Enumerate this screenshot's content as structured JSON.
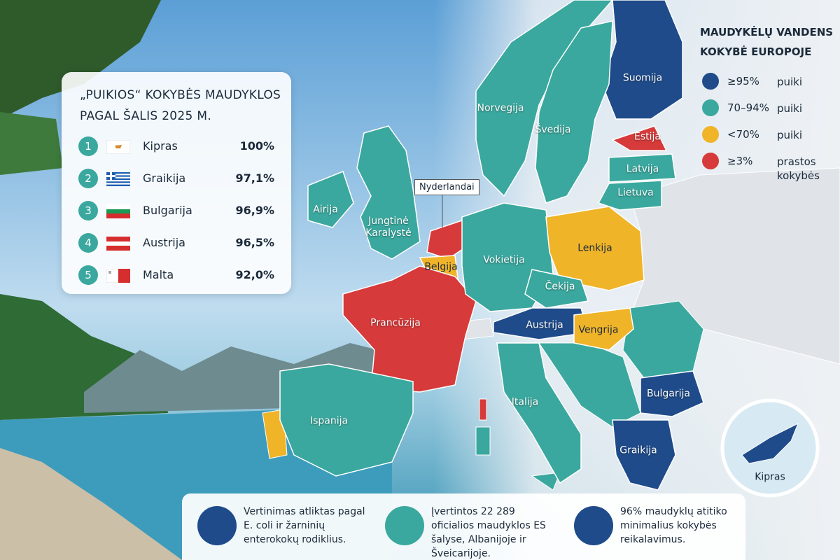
{
  "ranking": {
    "title": "„PUIKIOS“ KOKYBĖS MAUDYKLOS PAGAL ŠALIS 2025 M.",
    "rows": [
      {
        "rank": "1",
        "country": "Kipras",
        "share": "100%"
      },
      {
        "rank": "2",
        "country": "Graikija",
        "share": "97,1%"
      },
      {
        "rank": "3",
        "country": "Bulgarija",
        "share": "96,9%"
      },
      {
        "rank": "4",
        "country": "Austrija",
        "share": "96,5%"
      },
      {
        "rank": "5",
        "country": "Malta",
        "share": "92,0%"
      }
    ]
  },
  "legend": {
    "title": "MAUDYKĖLŲ VANDENS KOKYBĖ EUROPOJE",
    "items": [
      {
        "range": "≥95%",
        "label": "puiki",
        "color": "#1f4b8a"
      },
      {
        "range": "70–94%",
        "label": "puiki",
        "color": "#3aa89e"
      },
      {
        "range": "<70%",
        "label": "puiki",
        "color": "#f0b429"
      },
      {
        "range": "≥3%",
        "label": "prastos kokybės",
        "color": "#d63a3a"
      }
    ]
  },
  "map": {
    "countries": [
      {
        "name": "Suomija",
        "color": "#1f4b8a"
      },
      {
        "name": "Norvegija",
        "color": "#3aa89e"
      },
      {
        "name": "Švedija",
        "color": "#3aa89e"
      },
      {
        "name": "Estija",
        "color": "#d63a3a"
      },
      {
        "name": "Latvija",
        "color": "#3aa89e"
      },
      {
        "name": "Lietuva",
        "color": "#3aa89e"
      },
      {
        "name": "Jungtinė Karalystė",
        "color": "#3aa89e"
      },
      {
        "name": "Airija",
        "color": "#3aa89e"
      },
      {
        "name": "Nyderlandai",
        "color": "#d63a3a"
      },
      {
        "name": "Belgija",
        "color": "#f0b429"
      },
      {
        "name": "Prancūzija",
        "color": "#d63a3a"
      },
      {
        "name": "Vokietija",
        "color": "#3aa89e"
      },
      {
        "name": "Lenkija",
        "color": "#f0b429"
      },
      {
        "name": "Čekija",
        "color": "#3aa89e"
      },
      {
        "name": "Austrija",
        "color": "#1f4b8a"
      },
      {
        "name": "Vengrija",
        "color": "#f0b429"
      },
      {
        "name": "Bulgarija",
        "color": "#1f4b8a"
      },
      {
        "name": "Graikija",
        "color": "#1f4b8a"
      },
      {
        "name": "Italija",
        "color": "#3aa89e"
      },
      {
        "name": "Ispanija",
        "color": "#3aa89e"
      }
    ],
    "inset": {
      "name": "Kipras",
      "color": "#1f4b8a"
    }
  },
  "footer": [
    "Vertinimas atliktas pagal E. coli ir žarninių enterokokų rodiklius.",
    "Įvertintos 22 289 oficialios maudyklos ES šalyse, Albanijoje ir Šveicarijoje.",
    "96% maudyklų atitiko minimalius kokybės reikalavimus."
  ]
}
